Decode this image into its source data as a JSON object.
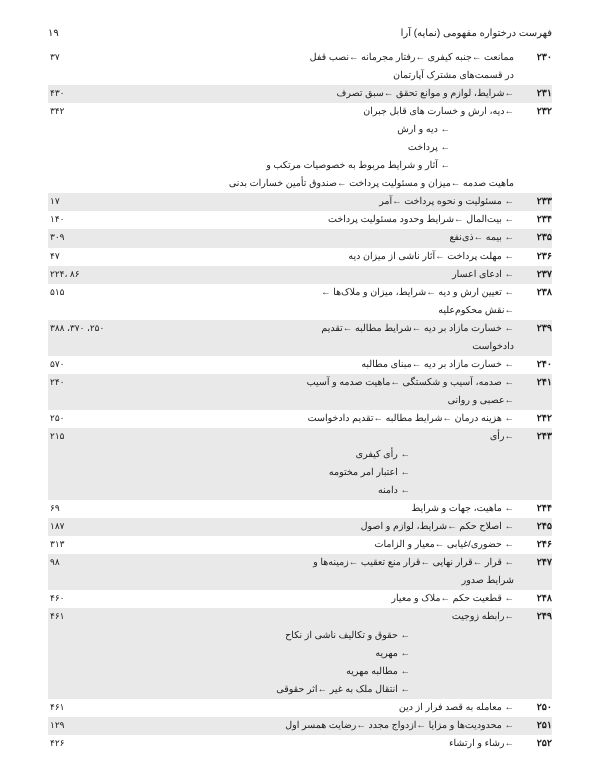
{
  "header": {
    "title": "فهرست درختواره مفهومی (نمایه) آرا",
    "page": "۱۹"
  },
  "rows": [
    {
      "num": "۲۳۰",
      "txt": "ممانعت ←جنبه کیفری ←رفتار مجرمانه ←نصب قفل",
      "pg": "۳۷",
      "shaded": false
    },
    {
      "num": "",
      "txt": "در قسمت‌های مشترک آپارتمان",
      "pg": "",
      "shaded": false,
      "sub": true
    },
    {
      "num": "۲۳۱",
      "txt": "←شرایط، لوازم و موانع تحقق ←سبق تصرف",
      "pg": "۴۳۰",
      "shaded": true
    },
    {
      "num": "۲۳۲",
      "txt": "←دیه، ارش و خسارت های قابل جبران",
      "pg": "۳۴۲",
      "shaded": false
    },
    {
      "num": "",
      "txt": "← دیه و ارش",
      "pg": "",
      "shaded": false,
      "sub": true,
      "indent": 1
    },
    {
      "num": "",
      "txt": "← پرداخت",
      "pg": "",
      "shaded": false,
      "sub": true,
      "indent": 1
    },
    {
      "num": "",
      "txt": "← آثار و شرایط مربوط به خصوصیات مرتکب و",
      "pg": "",
      "shaded": false,
      "sub": true,
      "indent": 1
    },
    {
      "num": "",
      "txt": "ماهیت صدمه ←میزان و مسئولیت پرداخت ←صندوق تأمین خسارات بدنی",
      "pg": "",
      "shaded": false,
      "sub": true
    },
    {
      "num": "۲۳۳",
      "txt": "← مسئولیت و نحوه پرداخت ←آمر",
      "pg": "۱۷",
      "shaded": true
    },
    {
      "num": "۲۳۴",
      "txt": "← بیت‌المال ←شرایط وحدود مسئولیت پرداخت",
      "pg": "۱۴۰",
      "shaded": false
    },
    {
      "num": "۲۳۵",
      "txt": "← بیمه ←ذی‌نفع",
      "pg": "۳۰۹",
      "shaded": true
    },
    {
      "num": "۲۳۶",
      "txt": "← مهلت پرداخت ←آثار ناشی از میزان دیه",
      "pg": "۴۷",
      "shaded": false
    },
    {
      "num": "۲۳۷",
      "txt": "← ادعای اعسار",
      "pg": "۸۶ ،۲۲۴",
      "shaded": true
    },
    {
      "num": "۲۳۸",
      "txt": "← تعیین ارش و دیه ←شرایط، میزان و ملاک‌ها ←",
      "pg": "۵۱۵",
      "shaded": false
    },
    {
      "num": "",
      "txt": "←نقش محکوم‌علیه",
      "pg": "",
      "shaded": false,
      "sub": true
    },
    {
      "num": "۲۳۹",
      "txt": "← خسارت مازاد بر دیه ←شرایط مطالبه ←تقدیم",
      "pg": "۲۵۰، ۳۷۰، ۳۸۸",
      "shaded": true
    },
    {
      "num": "",
      "txt": "دادخواست",
      "pg": "",
      "shaded": true,
      "sub": true
    },
    {
      "num": "۲۴۰",
      "txt": "← خسارت مازاد بر دیه ←مبنای مطالبه",
      "pg": "۵۷۰",
      "shaded": false
    },
    {
      "num": "۲۴۱",
      "txt": "← صدمه، آسیب و شکستگی ←ماهیت صدمه و آسیب",
      "pg": "۲۴۰",
      "shaded": true
    },
    {
      "num": "",
      "txt": "←عصبی و روانی",
      "pg": "",
      "shaded": true,
      "sub": true
    },
    {
      "num": "۲۴۲",
      "txt": "← هزینه درمان ←شرایط مطالبه ←تقدیم دادخواست",
      "pg": "۲۵۰",
      "shaded": false
    },
    {
      "num": "۲۴۳",
      "txt": "←رأی",
      "pg": "۲۱۵",
      "shaded": true
    },
    {
      "num": "",
      "txt": "← رأی کیفری",
      "pg": "",
      "shaded": true,
      "sub": true,
      "indent": 2
    },
    {
      "num": "",
      "txt": "← اعتبار امر مختومه",
      "pg": "",
      "shaded": true,
      "sub": true,
      "indent": 2
    },
    {
      "num": "",
      "txt": "← دامنه",
      "pg": "",
      "shaded": true,
      "sub": true,
      "indent": 2
    },
    {
      "num": "۲۴۴",
      "txt": "← ماهیت، جهات و شرایط",
      "pg": "۶۹",
      "shaded": false
    },
    {
      "num": "۲۴۵",
      "txt": "← اصلاح حکم ←شرایط، لوازم و اصول",
      "pg": "۱۸۷",
      "shaded": true
    },
    {
      "num": "۲۴۶",
      "txt": "← حضوری/غیابی ←معیار و الزامات",
      "pg": "۳۱۳",
      "shaded": false
    },
    {
      "num": "۲۴۷",
      "txt": "← قرار ←قرار نهایی ←قرار منع تعقیب ←زمینه‌ها و",
      "pg": "۹۸",
      "shaded": true
    },
    {
      "num": "",
      "txt": "شرایط صدور",
      "pg": "",
      "shaded": true,
      "sub": true
    },
    {
      "num": "۲۴۸",
      "txt": "← قطعیت حکم ←ملاک و معیار",
      "pg": "۴۶۰",
      "shaded": false
    },
    {
      "num": "۲۴۹",
      "txt": "←رابطه زوجیت",
      "pg": "۴۶۱",
      "shaded": true
    },
    {
      "num": "",
      "txt": "← حقوق و تکالیف ناشی از نکاح",
      "pg": "",
      "shaded": true,
      "sub": true,
      "indent": 2
    },
    {
      "num": "",
      "txt": "← مهریه",
      "pg": "",
      "shaded": true,
      "sub": true,
      "indent": 2
    },
    {
      "num": "",
      "txt": "← مطالبه مهریه",
      "pg": "",
      "shaded": true,
      "sub": true,
      "indent": 2
    },
    {
      "num": "",
      "txt": "← انتقال ملک به غیر ←اثر حقوقی",
      "pg": "",
      "shaded": true,
      "sub": true,
      "indent": 2
    },
    {
      "num": "۲۵۰",
      "txt": "← معامله به قصد فرار از دین",
      "pg": "۴۶۱",
      "shaded": false
    },
    {
      "num": "۲۵۱",
      "txt": "← محدودیت‌ها و مزایا ←ازدواج مجدد ←رضایت همسر اول",
      "pg": "۱۲۹",
      "shaded": true
    },
    {
      "num": "۲۵۲",
      "txt": "←رشاء و ارتشاء",
      "pg": "۴۲۶",
      "shaded": false
    }
  ]
}
